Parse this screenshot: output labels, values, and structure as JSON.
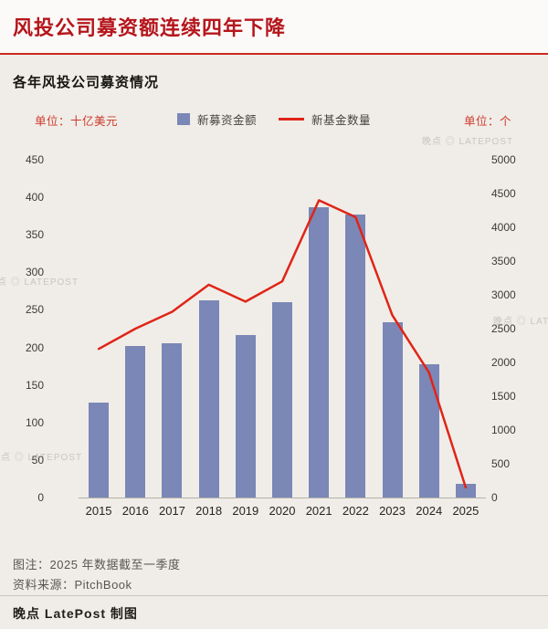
{
  "header": {
    "title": "风投公司募资额连续四年下降"
  },
  "units": {
    "left": "单位：十亿美元",
    "right": "单位：个"
  },
  "chart_data": {
    "type": "bar+line",
    "title": "各年风投公司募资情况",
    "categories": [
      "2015",
      "2016",
      "2017",
      "2018",
      "2019",
      "2020",
      "2021",
      "2022",
      "2023",
      "2024",
      "2025"
    ],
    "series": [
      {
        "name": "新募资金额",
        "type": "bar",
        "axis": "left",
        "unit": "十亿美元",
        "values": [
          127,
          202,
          206,
          263,
          217,
          260,
          387,
          377,
          234,
          177,
          18
        ]
      },
      {
        "name": "新基金数量",
        "type": "line",
        "axis": "right",
        "unit": "个",
        "values": [
          2200,
          2500,
          2750,
          3150,
          2900,
          3200,
          4400,
          4150,
          2700,
          1850,
          150
        ]
      }
    ],
    "left_axis": {
      "label": "单位：十亿美元",
      "min": 0,
      "max": 450,
      "ticks": [
        0,
        50,
        100,
        150,
        200,
        250,
        300,
        350,
        400,
        450
      ]
    },
    "right_axis": {
      "label": "单位：个",
      "min": 0,
      "max": 5000,
      "ticks": [
        0,
        500,
        1000,
        1500,
        2000,
        2500,
        3000,
        3500,
        4000,
        4500,
        5000
      ]
    },
    "grid": false,
    "legend_position": "top-center"
  },
  "footer": {
    "note": "图注：2025 年数据截至一季度",
    "source": "资料来源：PitchBook",
    "credit": "晚点 LatePost 制图"
  },
  "watermark": "晚点 ◎ LATEPOST",
  "colors": {
    "page_bg": "#f0ede8",
    "header_bg": "#fbfaf8",
    "title_red": "#b5161c",
    "header_line": "#cb2a20",
    "bar_blue": "#7b87b6",
    "line_red": "#e02418",
    "unit_red": "#cd382a",
    "tick_text": "#3c3a36",
    "xlabel_text": "#262420",
    "legend_text": "#45433f",
    "note_text": "#595650",
    "credit_text": "#211f1b",
    "divider": "#c8c5bf",
    "watermark": "#a8a49d"
  }
}
